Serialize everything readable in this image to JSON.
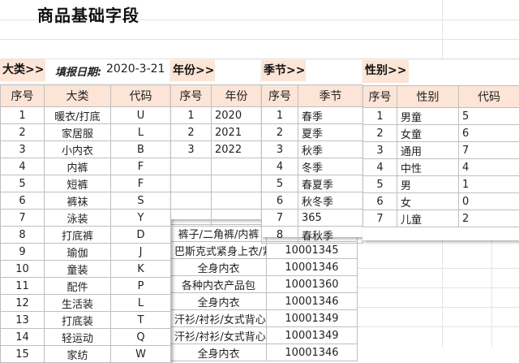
{
  "title": "商品基础字段",
  "category": {
    "label": "大类>>",
    "headers": [
      "序号",
      "大类",
      "代码"
    ],
    "rows": [
      [
        "1",
        "暖衣/打底",
        "U"
      ],
      [
        "2",
        "家居服",
        "L"
      ],
      [
        "3",
        "小内衣",
        "B"
      ],
      [
        "4",
        "内裤",
        "F"
      ],
      [
        "5",
        "短裤",
        "F"
      ],
      [
        "6",
        "裤袜",
        "S"
      ],
      [
        "7",
        "泳装",
        "Y"
      ],
      [
        "8",
        "打底裤",
        "D"
      ],
      [
        "9",
        "瑜伽",
        "J"
      ],
      [
        "10",
        "童装",
        "K"
      ],
      [
        "11",
        "配件",
        "P"
      ],
      [
        "12",
        "生活装",
        "L"
      ],
      [
        "13",
        "打底装",
        "T"
      ],
      [
        "14",
        "轻运动",
        "Q"
      ],
      [
        "15",
        "家纺",
        "W"
      ]
    ]
  },
  "fill_date": {
    "label": "填报日期:",
    "value": "2020-3-21"
  },
  "year": {
    "label": "年份>>",
    "headers": [
      "序号",
      "年份"
    ],
    "rows": [
      [
        "1",
        "2020"
      ],
      [
        "2",
        "2021"
      ],
      [
        "3",
        "2022"
      ]
    ]
  },
  "season": {
    "label": "季节>>",
    "headers": [
      "序号",
      "季节"
    ],
    "rows": [
      [
        "1",
        "春季"
      ],
      [
        "2",
        "夏季"
      ],
      [
        "3",
        "秋季"
      ],
      [
        "4",
        "冬季"
      ],
      [
        "5",
        "春夏季"
      ],
      [
        "6",
        "秋冬季"
      ],
      [
        "7",
        "365"
      ],
      [
        "8",
        "春秋季"
      ]
    ]
  },
  "gender": {
    "label": "性别>>",
    "headers": [
      "序号",
      "性别",
      "代码"
    ],
    "rows": [
      [
        "1",
        "男童",
        "5"
      ],
      [
        "2",
        "女童",
        "6"
      ],
      [
        "3",
        "通用",
        "7"
      ],
      [
        "4",
        "中性",
        "4"
      ],
      [
        "5",
        "男",
        "1"
      ],
      [
        "6",
        "女",
        "0"
      ],
      [
        "7",
        "儿童",
        "2"
      ]
    ]
  },
  "background": {
    "rows": [
      [
        "裤子/二角裤/内裤",
        ""
      ],
      [
        "巴斯克式紧身上衣/紧身",
        "10001345"
      ],
      [
        "全身内衣",
        "10001346"
      ],
      [
        "各种内衣产品包",
        "10001360"
      ],
      [
        "全身内衣",
        "10001346"
      ],
      [
        "汗衫/衬衫/女式背心",
        "10001349"
      ],
      [
        "汗衫/衬衫/女式背心",
        "10001349"
      ],
      [
        "全身内衣",
        "10001346"
      ]
    ]
  }
}
